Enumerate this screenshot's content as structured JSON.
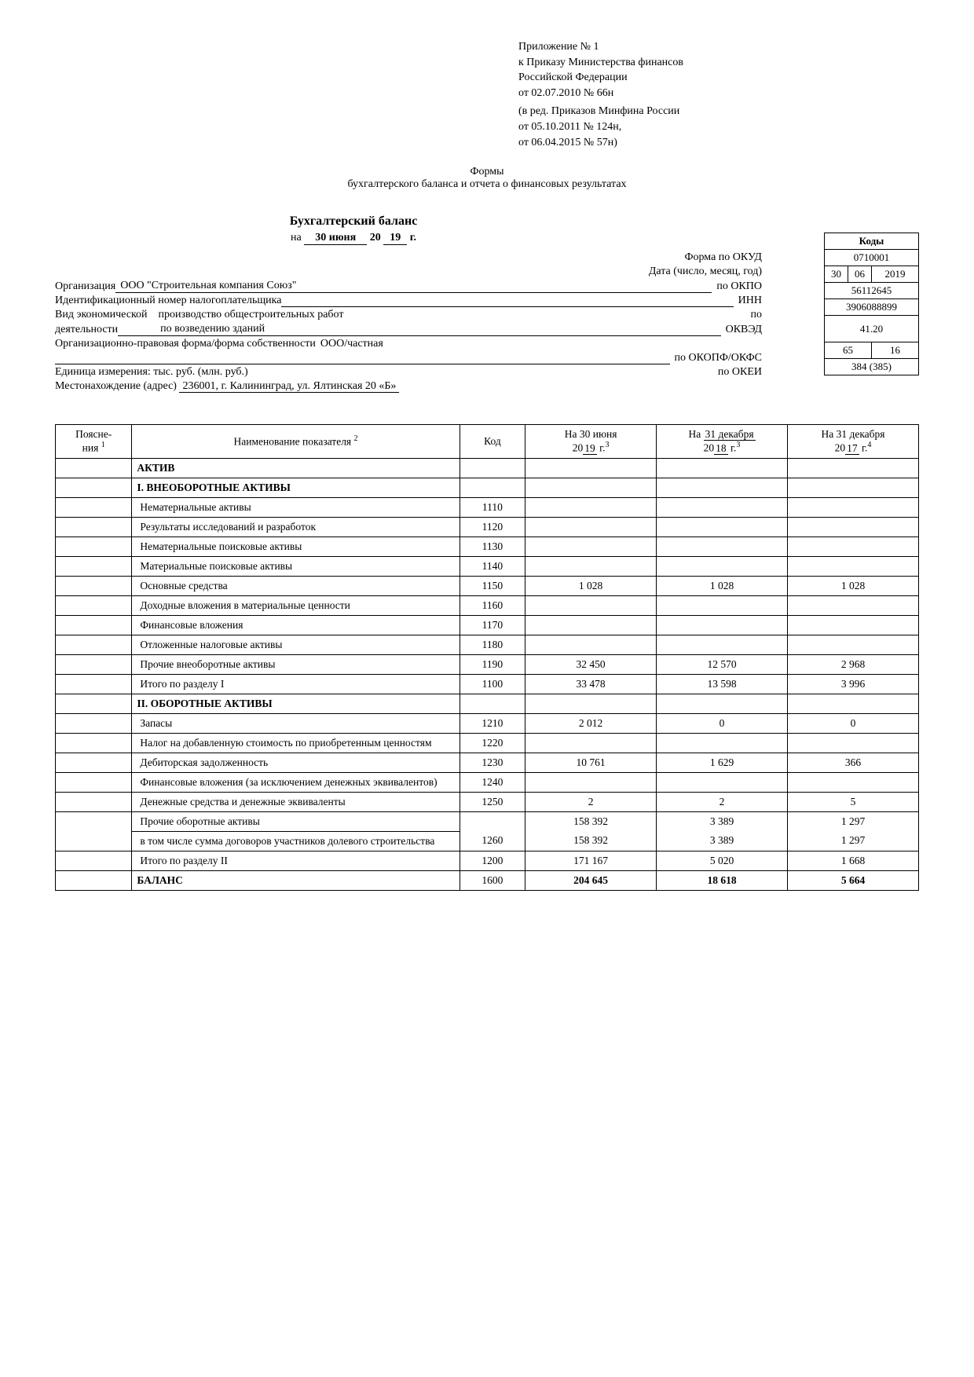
{
  "appendix": {
    "line1": "Приложение № 1",
    "line2": "к Приказу Министерства финансов",
    "line3": "Российской Федерации",
    "line4": "от 02.07.2010 № 66н",
    "line5": "(в ред. Приказов Минфина России",
    "line6": "от 05.10.2011 № 124н,",
    "line7": "от 06.04.2015 № 57н)"
  },
  "title": {
    "line1": "Формы",
    "line2": "бухгалтерского баланса и отчета о финансовых результатах"
  },
  "balance_title": "Бухгалтерский баланс",
  "date_on": "на",
  "date_month": "30 июня",
  "date_year_prefix": "20",
  "date_year_suffix": "19",
  "date_g": "г.",
  "codes_header": "Коды",
  "meta": {
    "form_okud_label": "Форма по ОКУД",
    "form_okud": "0710001",
    "date_label": "Дата (число, месяц, год)",
    "date_d": "30",
    "date_m": "06",
    "date_y": "2019",
    "org_label": "Организация",
    "org_value": "ООО \"Строительная компания Союз\"",
    "okpo_label": "по ОКПО",
    "okpo": "56112645",
    "inn_label": "Идентификационный номер налогоплательщика",
    "inn_right": "ИНН",
    "inn": "3906088899",
    "activity_label1": "Вид экономической",
    "activity_label2": "деятельности",
    "activity_value1": "производство общестроительных работ",
    "activity_value2": "по возведению зданий",
    "okved_po": "по",
    "okved_label": "ОКВЭД",
    "okved": "41.20",
    "opf_label": "Организационно-правовая форма/форма собственности",
    "opf_value": "ООО/частная",
    "okopf_label": "по ОКОПФ/ОКФС",
    "okopf1": "65",
    "okopf2": "16",
    "unit_label": "Единица измерения: тыс. руб. (млн. руб.)",
    "okei_label": "по ОКЕИ",
    "okei": "384 (385)",
    "addr_label": "Местонахождение (адрес)",
    "addr_value": "236001, г. Калининград, ул. Ялтинская 20 «Б»"
  },
  "table": {
    "headers": {
      "note": "Поясне-\nния",
      "name": "Наименование показателя",
      "code": "Код",
      "col1_top": "На 30 июня",
      "col1_y1": "20",
      "col1_y2": "19",
      "col1_g": "г.",
      "coldec": "На",
      "dec31": "31 декабря",
      "col2_y1": "20",
      "col2_y2": "18",
      "col2_g": "г.",
      "col3_y1": "20",
      "col3_y2": "17",
      "col3_g": "г."
    },
    "rows": [
      {
        "name": "АКТИВ",
        "bold": true,
        "code": "",
        "v1": "",
        "v2": "",
        "v3": ""
      },
      {
        "name": "I. ВНЕОБОРОТНЫЕ АКТИВЫ",
        "bold": true,
        "code": "",
        "v1": "",
        "v2": "",
        "v3": ""
      },
      {
        "name": "Нематериальные активы",
        "code": "1110",
        "v1": "",
        "v2": "",
        "v3": ""
      },
      {
        "name": "Результаты исследований и разработок",
        "code": "1120",
        "v1": "",
        "v2": "",
        "v3": ""
      },
      {
        "name": "Нематериальные поисковые активы",
        "code": "1130",
        "v1": "",
        "v2": "",
        "v3": ""
      },
      {
        "name": "Материальные поисковые активы",
        "code": "1140",
        "v1": "",
        "v2": "",
        "v3": ""
      },
      {
        "name": "Основные средства",
        "code": "1150",
        "v1": "1 028",
        "v2": "1 028",
        "v3": "1 028"
      },
      {
        "name": "Доходные вложения в материальные ценности",
        "code": "1160",
        "v1": "",
        "v2": "",
        "v3": ""
      },
      {
        "name": "Финансовые вложения",
        "code": "1170",
        "v1": "",
        "v2": "",
        "v3": ""
      },
      {
        "name": "Отложенные налоговые активы",
        "code": "1180",
        "v1": "",
        "v2": "",
        "v3": ""
      },
      {
        "name": "Прочие внеоборотные активы",
        "code": "1190",
        "v1": "32 450",
        "v2": "12 570",
        "v3": "2 968"
      },
      {
        "name": "Итого по разделу I",
        "code": "1100",
        "v1": "33 478",
        "v2": "13 598",
        "v3": "3 996"
      },
      {
        "name": "II. ОБОРОТНЫЕ АКТИВЫ",
        "bold": true,
        "code": "",
        "v1": "",
        "v2": "",
        "v3": ""
      },
      {
        "name": "Запасы",
        "code": "1210",
        "v1": "2 012",
        "v2": "0",
        "v3": "0"
      },
      {
        "name": "Налог на добавленную стоимость по приобретенным ценностям",
        "code": "1220",
        "v1": "",
        "v2": "",
        "v3": ""
      },
      {
        "name": "Дебиторская задолженность",
        "code": "1230",
        "v1": "10 761",
        "v2": "1 629",
        "v3": "366"
      },
      {
        "name": "Финансовые вложения (за исключением денежных эквивалентов)",
        "code": "1240",
        "v1": "",
        "v2": "",
        "v3": ""
      },
      {
        "name": "Денежные средства и денежные эквиваленты",
        "code": "1250",
        "v1": "2",
        "v2": "2",
        "v3": "5"
      },
      {
        "name": "Прочие оборотные активы",
        "code": "",
        "v1": "158 392",
        "v2": "3 389",
        "v3": "1 297",
        "noBottom": true
      },
      {
        "name": "в том числе сумма договоров участников долевого строительства",
        "code": "1260",
        "v1": "158 392",
        "v2": "3 389",
        "v3": "1 297",
        "noTop": true
      },
      {
        "name": "Итого по разделу II",
        "code": "1200",
        "v1": "171 167",
        "v2": "5 020",
        "v3": "1 668"
      },
      {
        "name": "БАЛАНС",
        "bold": true,
        "code": "1600",
        "v1": "204 645",
        "v2": "18 618",
        "v3": "5 664",
        "boldv": true
      }
    ]
  }
}
